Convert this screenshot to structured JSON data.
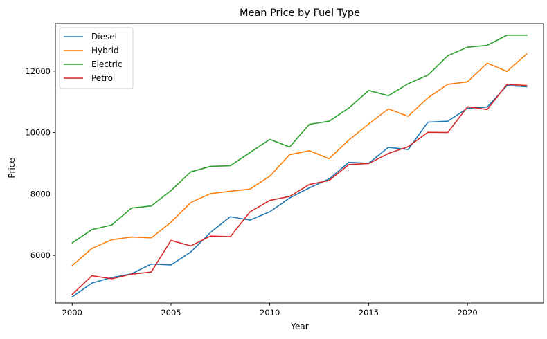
{
  "chart_data": {
    "type": "line",
    "title": "Mean Price by Fuel Type",
    "xlabel": "Year",
    "ylabel": "Price",
    "xlim": [
      1999.15,
      2023.85
    ],
    "ylim": [
      4450,
      13550
    ],
    "xticks": [
      2000,
      2005,
      2010,
      2015,
      2020
    ],
    "yticks": [
      6000,
      8000,
      10000,
      12000
    ],
    "grid": false,
    "legend": "top-left",
    "x": [
      2000,
      2001,
      2002,
      2003,
      2004,
      2005,
      2006,
      2007,
      2008,
      2009,
      2010,
      2011,
      2012,
      2013,
      2014,
      2015,
      2016,
      2017,
      2018,
      2019,
      2020,
      2021,
      2022,
      2023
    ],
    "series": [
      {
        "name": "Diesel",
        "color": "#1f77b4",
        "values": [
          4650,
          5100,
          5280,
          5400,
          5720,
          5690,
          6110,
          6750,
          7260,
          7150,
          7420,
          7870,
          8200,
          8490,
          9030,
          9000,
          9520,
          9450,
          10340,
          10370,
          10790,
          10830,
          11530,
          11490
        ]
      },
      {
        "name": "Hybrid",
        "color": "#ff7f0e",
        "values": [
          5670,
          6230,
          6510,
          6600,
          6570,
          7080,
          7720,
          8010,
          8090,
          8160,
          8580,
          9280,
          9410,
          9150,
          9760,
          10280,
          10770,
          10530,
          11130,
          11570,
          11650,
          12260,
          11990,
          12560
        ]
      },
      {
        "name": "Electric",
        "color": "#2ca02c",
        "values": [
          6410,
          6840,
          6990,
          7540,
          7610,
          8110,
          8720,
          8900,
          8920,
          9350,
          9780,
          9530,
          10270,
          10370,
          10800,
          11370,
          11200,
          11590,
          11870,
          12500,
          12780,
          12840,
          13170,
          13170
        ]
      },
      {
        "name": "Petrol",
        "color": "#d62728",
        "values": [
          4730,
          5340,
          5240,
          5390,
          5460,
          6490,
          6310,
          6630,
          6610,
          7420,
          7790,
          7920,
          8310,
          8440,
          8960,
          8990,
          9320,
          9540,
          10010,
          10000,
          10840,
          10750,
          11570,
          11530
        ]
      }
    ]
  }
}
